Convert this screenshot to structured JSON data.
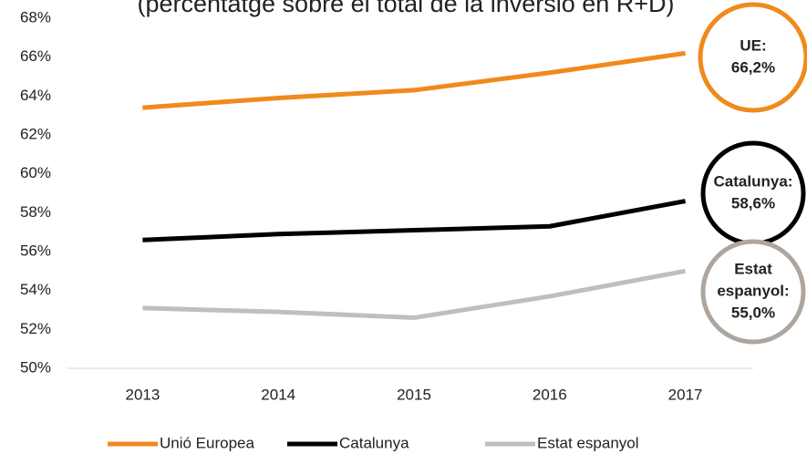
{
  "chart_data": {
    "type": "line",
    "title": "(percentatge sobre el total de la inversió en R+D)",
    "categories": [
      "2013",
      "2014",
      "2015",
      "2016",
      "2017"
    ],
    "series": [
      {
        "name": "Unió Europea",
        "color": "#f08a1c",
        "values": [
          63.4,
          63.9,
          64.3,
          65.2,
          66.2
        ]
      },
      {
        "name": "Catalunya",
        "color": "#000000",
        "values": [
          56.6,
          56.9,
          57.1,
          57.3,
          58.6
        ]
      },
      {
        "name": "Estat espanyol",
        "color": "#bfbfbf",
        "values": [
          53.1,
          52.9,
          52.6,
          53.7,
          55.0
        ]
      }
    ],
    "ylim": [
      50,
      68
    ],
    "yticks": [
      {
        "value": 50,
        "label": "50%"
      },
      {
        "value": 52,
        "label": "52%"
      },
      {
        "value": 54,
        "label": "54%"
      },
      {
        "value": 56,
        "label": "56%"
      },
      {
        "value": 58,
        "label": "58%"
      },
      {
        "value": 60,
        "label": "60%"
      },
      {
        "value": 62,
        "label": "62%"
      },
      {
        "value": 64,
        "label": "64%"
      },
      {
        "value": 66,
        "label": "66%"
      },
      {
        "value": 68,
        "label": "68%"
      }
    ],
    "annotations": [
      {
        "lines": [
          "UE:",
          "66,2%"
        ],
        "color": "#f08a1c"
      },
      {
        "lines": [
          "Catalunya:",
          "58,6%"
        ],
        "color": "#000000"
      },
      {
        "lines": [
          "Estat",
          "espanyol:",
          "55,0%"
        ],
        "color": "#aea69e"
      }
    ],
    "legend": "bottom"
  }
}
